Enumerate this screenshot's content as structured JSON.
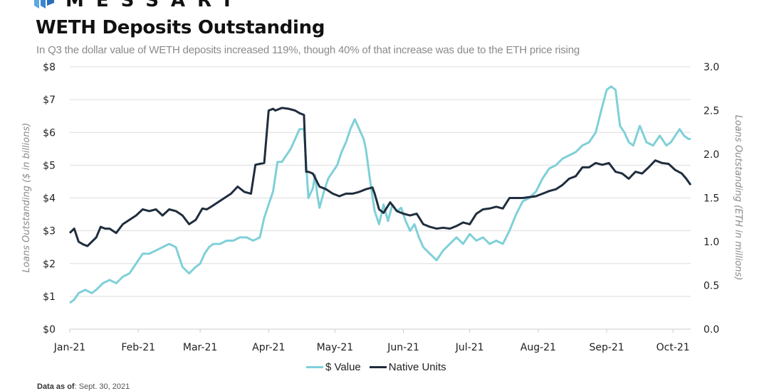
{
  "brand": {
    "name": "MESSARI"
  },
  "header": {
    "title": "WETH Deposits Outstanding",
    "subtitle": "In Q3 the dollar value of WETH deposits increased 119%, though 40% of that increase was due to the ETH price rising"
  },
  "footnote": {
    "label": "Data as of",
    "value": ": Sept. 30, 2021"
  },
  "colors": {
    "usd": "#7fd0d8",
    "native": "#1f2d3d",
    "grid": "#dddddd"
  },
  "chart_data": {
    "type": "line",
    "title": "WETH Deposits Outstanding",
    "x_unit": "days since Jan 1, 2021",
    "xlim": [
      0,
      281
    ],
    "x_ticks": [
      {
        "day": 0,
        "label": "Jan-21"
      },
      {
        "day": 31,
        "label": "Feb-21"
      },
      {
        "day": 59,
        "label": "Mar-21"
      },
      {
        "day": 90,
        "label": "Apr-21"
      },
      {
        "day": 120,
        "label": "May-21"
      },
      {
        "day": 151,
        "label": "Jun-21"
      },
      {
        "day": 181,
        "label": "Jul-21"
      },
      {
        "day": 212,
        "label": "Aug-21"
      },
      {
        "day": 243,
        "label": "Sep-21"
      },
      {
        "day": 273,
        "label": "Oct-21"
      }
    ],
    "y_left": {
      "label": "Loans Outstanding ($ in billions)",
      "ylim": [
        0,
        8
      ],
      "ticks": [
        "$0",
        "$1",
        "$2",
        "$3",
        "$4",
        "$5",
        "$6",
        "$7",
        "$8"
      ]
    },
    "y_right": {
      "label": "Loans Outstanding (ETH in millions)",
      "ylim": [
        0,
        3
      ],
      "ticks": [
        "0.0",
        "0.5",
        "1.0",
        "1.5",
        "2.0",
        "2.5",
        "3.0"
      ]
    },
    "grid": true,
    "legend": "bottom-center",
    "series": [
      {
        "name": "$ Value",
        "axis": "left",
        "x": [
          0,
          2,
          4,
          7,
          10,
          12,
          15,
          18,
          21,
          24,
          27,
          30,
          33,
          36,
          39,
          42,
          45,
          48,
          51,
          54,
          57,
          59,
          61,
          63,
          65,
          68,
          71,
          74,
          77,
          80,
          83,
          86,
          88,
          90,
          92,
          94,
          96,
          98,
          100,
          102,
          104,
          106,
          108,
          110,
          111,
          112,
          113,
          115,
          117,
          119,
          121,
          123,
          125,
          127,
          129,
          131,
          133,
          134,
          135,
          136,
          138,
          140,
          142,
          144,
          146,
          148,
          150,
          152,
          154,
          156,
          158,
          160,
          163,
          166,
          169,
          172,
          175,
          178,
          181,
          184,
          187,
          190,
          193,
          196,
          199,
          202,
          205,
          208,
          211,
          214,
          217,
          220,
          223,
          226,
          229,
          232,
          235,
          238,
          241,
          243,
          245,
          247,
          249,
          251,
          253,
          255,
          258,
          261,
          264,
          267,
          270,
          272,
          274,
          276,
          278,
          280,
          281
        ],
        "values": [
          0.8,
          0.9,
          1.1,
          1.2,
          1.1,
          1.2,
          1.4,
          1.5,
          1.4,
          1.6,
          1.7,
          2.0,
          2.3,
          2.3,
          2.4,
          2.5,
          2.6,
          2.5,
          1.9,
          1.7,
          1.9,
          2.0,
          2.3,
          2.5,
          2.6,
          2.6,
          2.7,
          2.7,
          2.8,
          2.8,
          2.7,
          2.8,
          3.4,
          3.8,
          4.2,
          5.1,
          5.1,
          5.3,
          5.5,
          5.8,
          6.1,
          6.1,
          4.0,
          4.3,
          4.7,
          4.1,
          3.7,
          4.2,
          4.6,
          4.8,
          5.0,
          5.4,
          5.7,
          6.1,
          6.4,
          6.1,
          5.8,
          5.5,
          5.0,
          4.5,
          3.6,
          3.2,
          3.8,
          3.3,
          3.8,
          3.6,
          3.7,
          3.3,
          3.0,
          3.2,
          2.8,
          2.5,
          2.3,
          2.1,
          2.4,
          2.6,
          2.8,
          2.6,
          2.9,
          2.7,
          2.8,
          2.6,
          2.7,
          2.6,
          3.0,
          3.5,
          3.9,
          4.0,
          4.2,
          4.6,
          4.9,
          5.0,
          5.2,
          5.3,
          5.4,
          5.6,
          5.7,
          6.0,
          6.8,
          7.3,
          7.4,
          7.3,
          6.2,
          6.0,
          5.7,
          5.6,
          6.2,
          5.7,
          5.6,
          5.9,
          5.6,
          5.7,
          5.9,
          6.1,
          5.9,
          5.8,
          5.8
        ]
      },
      {
        "name": "Native Units",
        "axis": "right",
        "x": [
          0,
          2,
          4,
          6,
          8,
          10,
          12,
          14,
          16,
          18,
          21,
          24,
          27,
          30,
          33,
          36,
          39,
          42,
          45,
          48,
          51,
          54,
          57,
          60,
          62,
          64,
          67,
          70,
          73,
          76,
          79,
          82,
          84,
          86,
          88,
          90,
          92,
          93,
          96,
          99,
          102,
          104,
          106,
          107,
          108,
          110,
          113,
          116,
          119,
          122,
          125,
          128,
          131,
          134,
          137,
          138,
          140,
          142,
          145,
          148,
          151,
          154,
          157,
          160,
          163,
          166,
          169,
          172,
          175,
          178,
          181,
          184,
          187,
          190,
          193,
          196,
          199,
          202,
          205,
          208,
          211,
          214,
          217,
          220,
          223,
          226,
          229,
          232,
          235,
          238,
          241,
          244,
          247,
          250,
          253,
          256,
          259,
          262,
          265,
          268,
          271,
          274,
          277,
          279,
          281
        ],
        "values": [
          1.1,
          1.15,
          1.0,
          0.97,
          0.95,
          1.0,
          1.05,
          1.17,
          1.15,
          1.15,
          1.1,
          1.2,
          1.25,
          1.3,
          1.37,
          1.35,
          1.37,
          1.3,
          1.37,
          1.35,
          1.3,
          1.2,
          1.25,
          1.38,
          1.37,
          1.4,
          1.45,
          1.5,
          1.55,
          1.63,
          1.57,
          1.55,
          1.88,
          1.89,
          1.9,
          2.5,
          2.52,
          2.5,
          2.53,
          2.52,
          2.5,
          2.47,
          2.45,
          1.8,
          1.8,
          1.78,
          1.63,
          1.6,
          1.55,
          1.52,
          1.55,
          1.55,
          1.57,
          1.6,
          1.62,
          1.55,
          1.37,
          1.33,
          1.45,
          1.35,
          1.32,
          1.3,
          1.32,
          1.2,
          1.17,
          1.15,
          1.16,
          1.15,
          1.18,
          1.22,
          1.2,
          1.32,
          1.37,
          1.38,
          1.4,
          1.38,
          1.5,
          1.5,
          1.5,
          1.51,
          1.52,
          1.55,
          1.58,
          1.6,
          1.65,
          1.72,
          1.75,
          1.85,
          1.85,
          1.9,
          1.88,
          1.9,
          1.8,
          1.78,
          1.72,
          1.8,
          1.78,
          1.85,
          1.93,
          1.9,
          1.89,
          1.82,
          1.78,
          1.72,
          1.65
        ]
      }
    ]
  }
}
